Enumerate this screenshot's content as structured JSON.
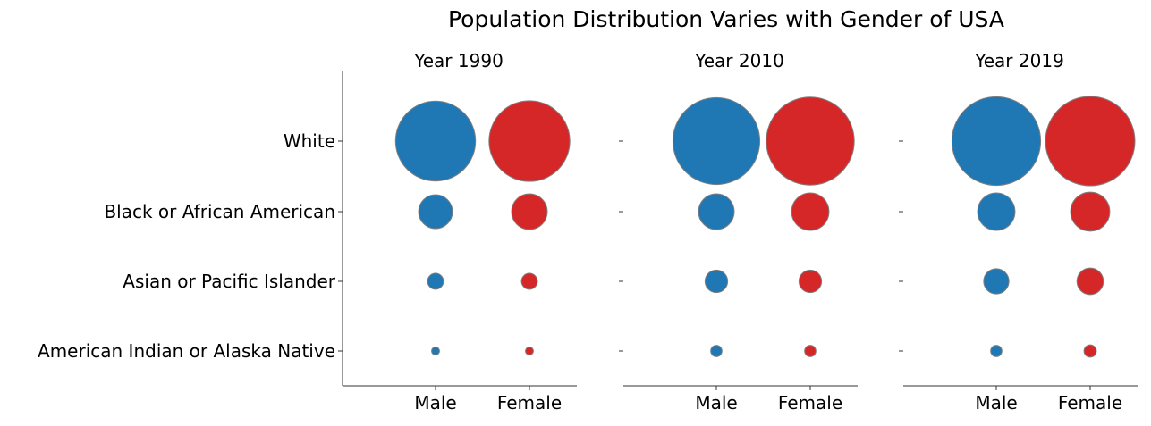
{
  "chart_data": {
    "type": "bubble",
    "title": "Population Distribution Varies with Gender of USA",
    "categories": [
      "White",
      "Black or African American",
      "Asian or Pacific Islander",
      "American Indian or Alaska Native"
    ],
    "genders": [
      "Male",
      "Female"
    ],
    "panels": [
      {
        "title": "Year 1990",
        "series": [
          {
            "name": "Male",
            "values": [
              100,
              18,
              4,
              1
            ]
          },
          {
            "name": "Female",
            "values": [
              102,
              20,
              4,
              1
            ]
          }
        ]
      },
      {
        "title": "Year 2010",
        "series": [
          {
            "name": "Male",
            "values": [
              118,
              20,
              8,
              2
            ]
          },
          {
            "name": "Female",
            "values": [
              121,
              22,
              8,
              2
            ]
          }
        ]
      },
      {
        "title": "Year 2019",
        "series": [
          {
            "name": "Male",
            "values": [
              123,
              22,
              10,
              2
            ]
          },
          {
            "name": "Female",
            "values": [
              125,
              24,
              11,
              2.4
            ]
          }
        ]
      }
    ],
    "colors": {
      "Male": "#1f77b4",
      "Female": "#d62728",
      "edge": "#808080",
      "axis": "#333333"
    },
    "legend": "none",
    "grid": false
  }
}
